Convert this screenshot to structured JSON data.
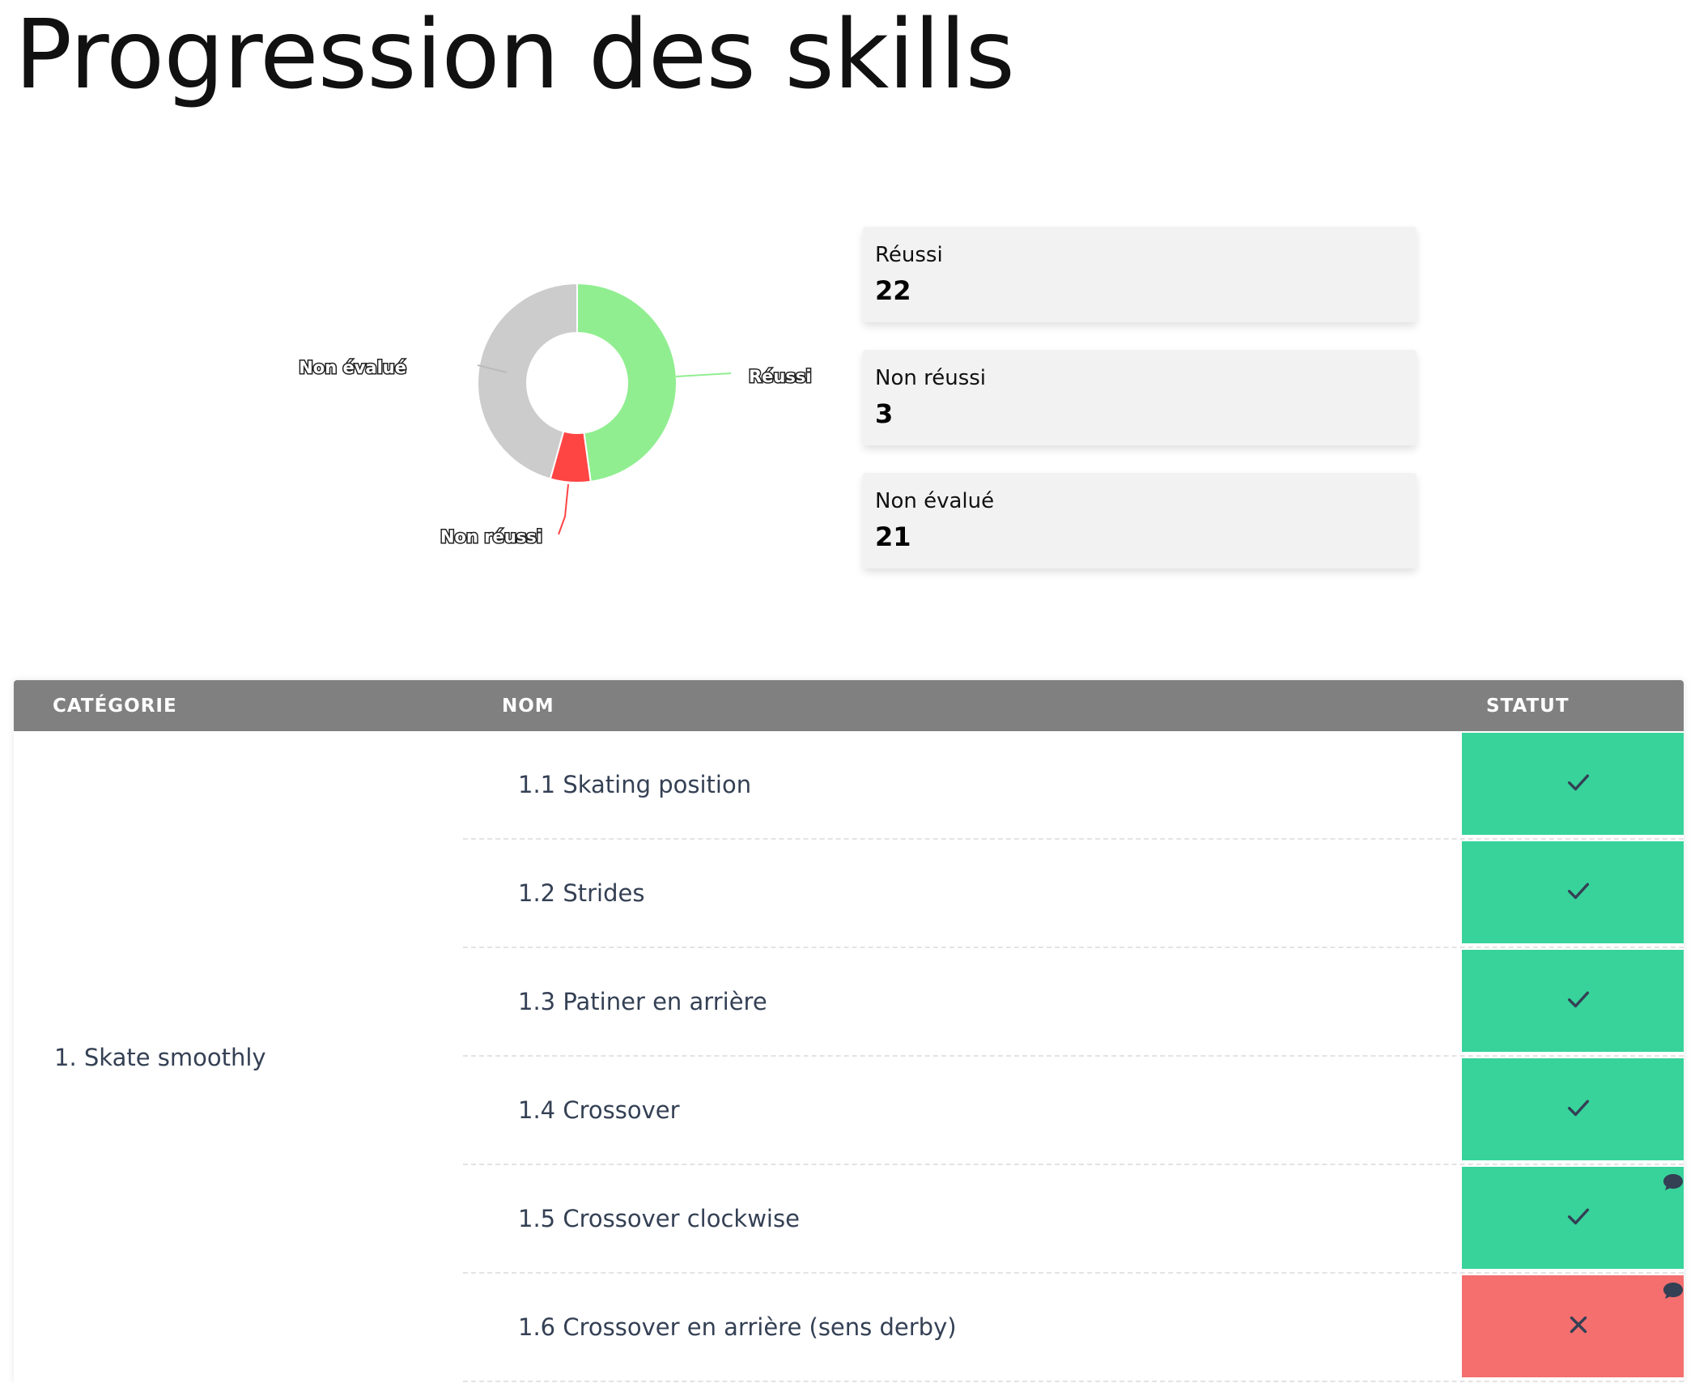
{
  "page": {
    "title": "Progression des skills"
  },
  "chart_data": {
    "type": "pie",
    "donut": true,
    "categories": [
      "Réussi",
      "Non réussi",
      "Non évalué"
    ],
    "values": [
      22,
      3,
      21
    ],
    "colors": [
      "#90ee90",
      "#ff4444",
      "#cccccc"
    ],
    "labels_shown": [
      "Réussi",
      "Non réussi",
      "Non évalué"
    ]
  },
  "stats": [
    {
      "label": "Réussi",
      "value": "22"
    },
    {
      "label": "Non réussi",
      "value": "3"
    },
    {
      "label": "Non évalué",
      "value": "21"
    }
  ],
  "table": {
    "headers": {
      "category": "CATÉGORIE",
      "name": "NOM",
      "status": "STATUT"
    },
    "category": "1. Skate smoothly",
    "rows": [
      {
        "name": "1.1 Skating position",
        "status": "success",
        "comment": false
      },
      {
        "name": "1.2 Strides",
        "status": "success",
        "comment": false
      },
      {
        "name": "1.3 Patiner en arrière",
        "status": "success",
        "comment": false
      },
      {
        "name": "1.4 Crossover",
        "status": "success",
        "comment": false
      },
      {
        "name": "1.5 Crossover clockwise",
        "status": "success",
        "comment": true
      },
      {
        "name": "1.6 Crossover en arrière (sens derby)",
        "status": "fail",
        "comment": true
      }
    ],
    "icons": {
      "success": "check-icon",
      "fail": "cross-icon",
      "comment": "comment-bubble-icon"
    },
    "colors": {
      "success": "#37d39b",
      "fail": "#f56f6f",
      "header": "#808080"
    }
  }
}
